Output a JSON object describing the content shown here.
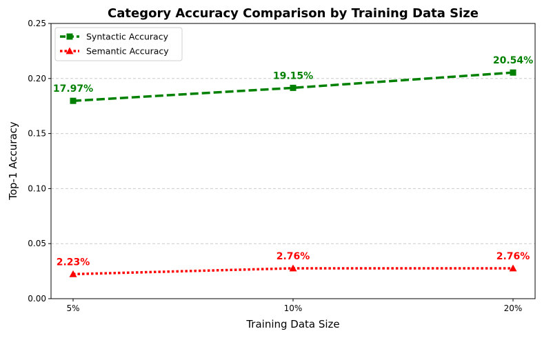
{
  "chart_data": {
    "type": "line",
    "title": "Category Accuracy Comparison by Training Data Size",
    "xlabel": "Training Data Size",
    "ylabel": "Top-1 Accuracy",
    "categories": [
      "5%",
      "10%",
      "20%"
    ],
    "ylim": [
      0,
      0.25
    ],
    "yticks": [
      "0.00",
      "0.05",
      "0.10",
      "0.15",
      "0.20",
      "0.25"
    ],
    "grid": "horizontal-dashed",
    "legend_position": "top-left",
    "series": [
      {
        "name": "Syntactic Accuracy",
        "values": [
          0.1797,
          0.1915,
          0.2054
        ],
        "labels": [
          "17.97%",
          "19.15%",
          "20.54%"
        ],
        "color": "#008000",
        "line_style": "dashed",
        "marker": "square"
      },
      {
        "name": "Semantic Accuracy",
        "values": [
          0.0223,
          0.0276,
          0.0276
        ],
        "labels": [
          "2.23%",
          "2.76%",
          "2.76%"
        ],
        "color": "#ff0000",
        "line_style": "dotted",
        "marker": "triangle"
      }
    ]
  }
}
